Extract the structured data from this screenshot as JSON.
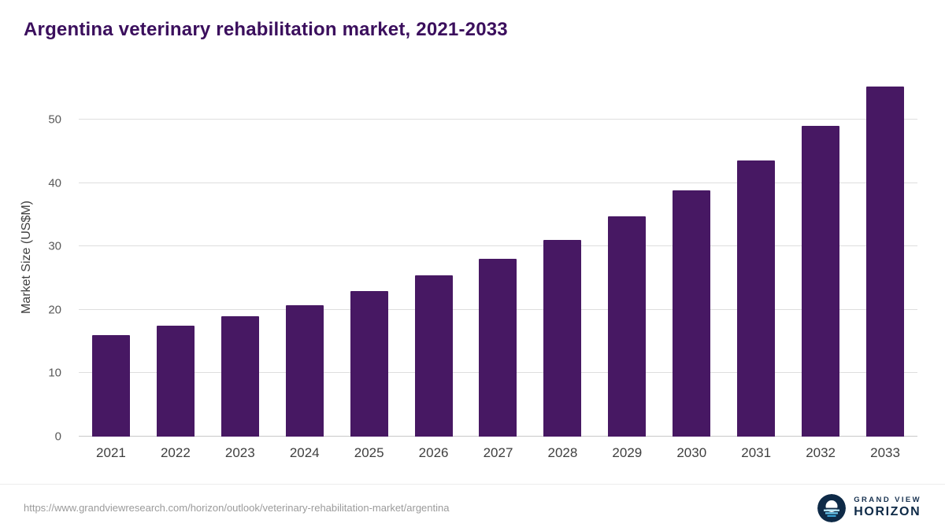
{
  "title": "Argentina veterinary rehabilitation market, 2021-2033",
  "colors": {
    "bar": "#471863",
    "title": "#3b0f5d",
    "grid": "#dedede",
    "axis_text": "#595959",
    "logo_navy": "#0e2a47",
    "logo_light_blue": "#7fd4f2"
  },
  "footer": {
    "source_url": "https://www.grandviewresearch.com/horizon/outlook/veterinary-rehabilitation-market/argentina",
    "logo_line1": "GRAND VIEW",
    "logo_line2": "HORIZON"
  },
  "chart_data": {
    "type": "bar",
    "title": "Argentina veterinary rehabilitation market, 2021-2033",
    "xlabel": "",
    "ylabel": "Market Size (US$M)",
    "categories": [
      "2021",
      "2022",
      "2023",
      "2024",
      "2025",
      "2026",
      "2027",
      "2028",
      "2029",
      "2030",
      "2031",
      "2032",
      "2033"
    ],
    "values": [
      16.0,
      17.5,
      19.0,
      20.8,
      23.0,
      25.5,
      28.1,
      31.1,
      34.8,
      38.9,
      43.6,
      49.0,
      55.3
    ],
    "yticks": [
      0,
      10,
      20,
      30,
      40,
      50
    ],
    "ylim": [
      0,
      56.5
    ],
    "grid": true,
    "legend": false
  }
}
